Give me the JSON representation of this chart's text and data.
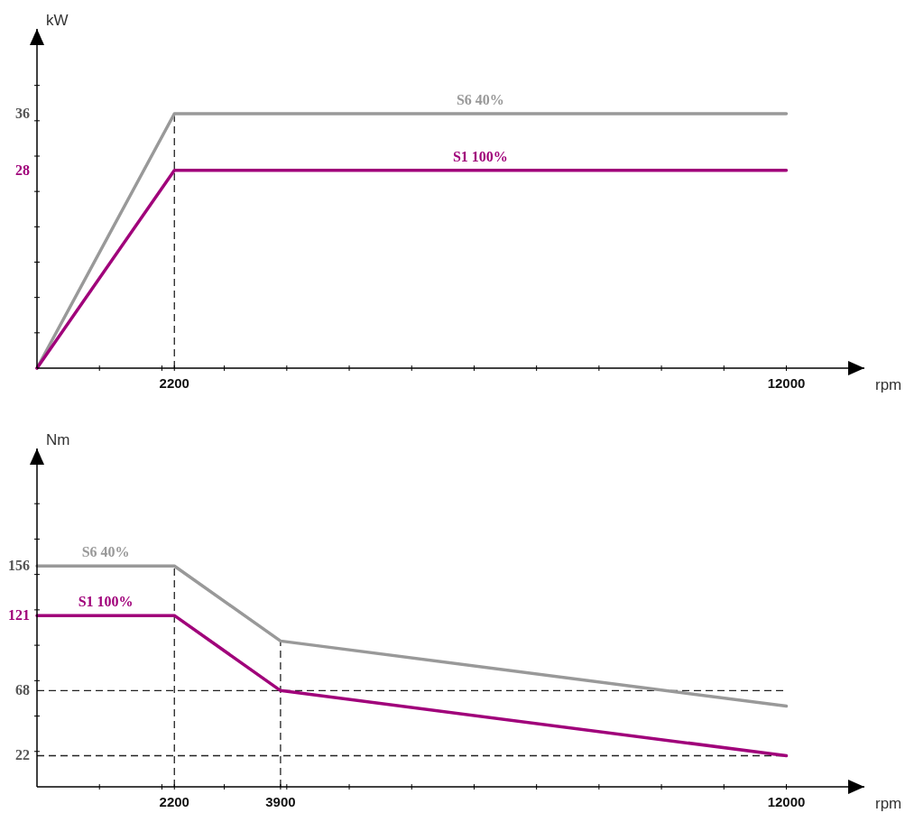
{
  "chart_data": [
    {
      "type": "line",
      "xlabel": "rpm",
      "ylabel": "kW",
      "x": [
        0,
        2200,
        12000
      ],
      "xlim": [
        0,
        13250
      ],
      "ylim": [
        0,
        48
      ],
      "xticks": [
        {
          "value": 1000,
          "label": null
        },
        {
          "value": 2000,
          "label": null
        },
        2200,
        {
          "value": 3000,
          "label": null
        },
        {
          "value": 4000,
          "label": null
        },
        {
          "value": 5000,
          "label": null
        },
        {
          "value": 6000,
          "label": null
        },
        {
          "value": 7000,
          "label": null
        },
        {
          "value": 8000,
          "label": null
        },
        {
          "value": 9000,
          "label": null
        },
        {
          "value": 10000,
          "label": null
        },
        {
          "value": 11000,
          "label": null
        },
        12000
      ],
      "yticks": [
        {
          "value": 5,
          "label": null
        },
        {
          "value": 10,
          "label": null
        },
        {
          "value": 15,
          "label": null
        },
        {
          "value": 20,
          "label": null
        },
        {
          "value": 25,
          "label": null
        },
        28,
        {
          "value": 30,
          "label": null
        },
        {
          "value": 35,
          "label": null
        },
        36,
        {
          "value": 40,
          "label": null
        }
      ],
      "series": [
        {
          "name": "S6 40%",
          "color": "#999999",
          "values": [
            0,
            36,
            36
          ]
        },
        {
          "name": "S1 100%",
          "color": "#a0007a",
          "values": [
            0,
            28,
            28
          ]
        }
      ],
      "ref_lines": [
        {
          "axis": "x",
          "value": 2200,
          "color": "#222222",
          "line_style": "dashed"
        }
      ]
    },
    {
      "type": "line",
      "xlabel": "rpm",
      "ylabel": "Nm",
      "x": [
        0,
        2200,
        3900,
        12000
      ],
      "xlim": [
        0,
        13250
      ],
      "ylim": [
        0,
        239
      ],
      "xticks": [
        {
          "value": 1000,
          "label": null
        },
        {
          "value": 2000,
          "label": null
        },
        2200,
        {
          "value": 3000,
          "label": null
        },
        3900,
        {
          "value": 4000,
          "label": null
        },
        {
          "value": 5000,
          "label": null
        },
        {
          "value": 6000,
          "label": null
        },
        {
          "value": 7000,
          "label": null
        },
        {
          "value": 8000,
          "label": null
        },
        {
          "value": 9000,
          "label": null
        },
        {
          "value": 10000,
          "label": null
        },
        {
          "value": 11000,
          "label": null
        },
        12000
      ],
      "yticks": [
        22,
        {
          "value": 25,
          "label": null
        },
        {
          "value": 50,
          "label": null
        },
        68,
        {
          "value": 75,
          "label": null
        },
        {
          "value": 100,
          "label": null
        },
        121,
        {
          "value": 125,
          "label": null
        },
        {
          "value": 150,
          "label": null
        },
        156,
        {
          "value": 175,
          "label": null
        },
        {
          "value": 200,
          "label": null
        }
      ],
      "series": [
        {
          "name": "S6 40%",
          "color": "#999999",
          "values": [
            156,
            156,
            103,
            57
          ]
        },
        {
          "name": "S1 100%",
          "color": "#a0007a",
          "values": [
            121,
            121,
            68,
            22
          ]
        }
      ],
      "ref_lines": [
        {
          "axis": "x",
          "value": 2200,
          "color": "#222222",
          "line_style": "dashed"
        },
        {
          "axis": "x",
          "value": 3900,
          "color": "#222222",
          "line_style": "dashed"
        },
        {
          "axis": "y",
          "value": 68,
          "color": "#222222",
          "line_style": "dashed"
        },
        {
          "axis": "y",
          "value": 22,
          "color": "#222222",
          "line_style": "dashed"
        }
      ]
    }
  ]
}
